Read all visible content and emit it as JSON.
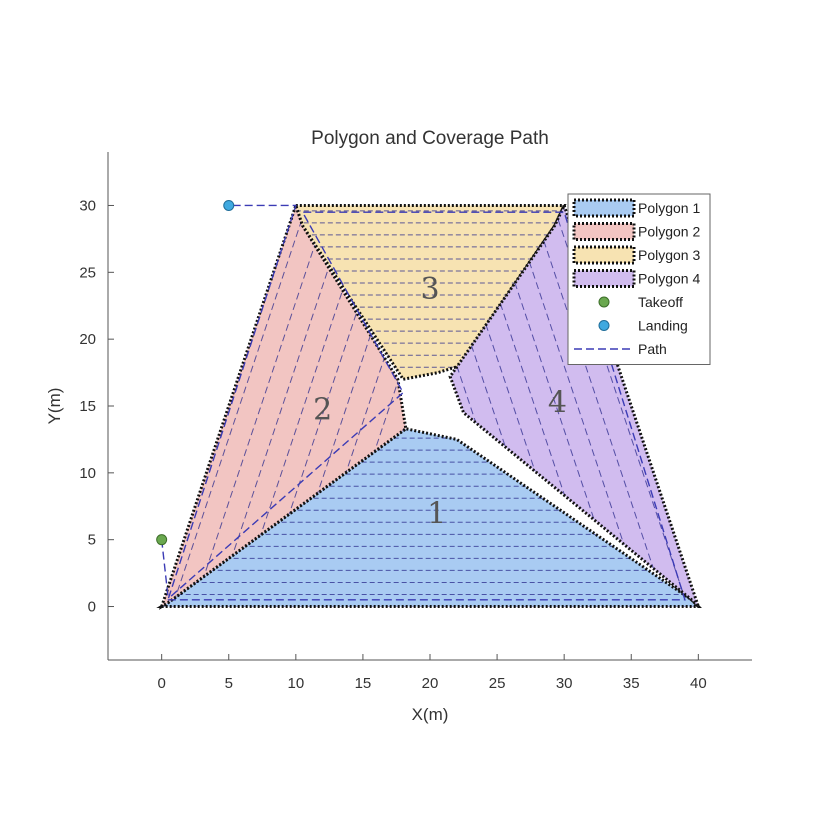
{
  "chart_data": {
    "type": "scatter",
    "title": "Polygon and Coverage Path",
    "xlabel": "X(m)",
    "ylabel": "Y(m)",
    "xlim": [
      -4,
      44
    ],
    "ylim": [
      -4,
      34
    ],
    "xticks": [
      0,
      5,
      10,
      15,
      20,
      25,
      30,
      35,
      40
    ],
    "yticks": [
      0,
      5,
      10,
      15,
      20,
      25,
      30
    ],
    "grid": false,
    "legend_position": "top-right",
    "polygons": [
      {
        "name": "Polygon 1",
        "label": "1",
        "label_at": [
          20.5,
          6.2
        ],
        "color": "#a9cbf2",
        "vertices": [
          [
            0,
            0
          ],
          [
            40,
            0
          ],
          [
            39.5,
            0.5
          ],
          [
            22,
            12.5
          ],
          [
            18.2,
            13.3
          ],
          [
            0.5,
            0.3
          ]
        ]
      },
      {
        "name": "Polygon 2",
        "label": "2",
        "label_at": [
          12,
          14
        ],
        "color": "#f2c5c2",
        "vertices": [
          [
            0,
            0
          ],
          [
            10,
            30
          ],
          [
            10.5,
            28.5
          ],
          [
            17.6,
            17
          ],
          [
            18.2,
            13.3
          ],
          [
            0.5,
            0.3
          ]
        ]
      },
      {
        "name": "Polygon 3",
        "label": "3",
        "label_at": [
          20,
          23
        ],
        "color": "#f7e3b2",
        "vertices": [
          [
            10,
            30
          ],
          [
            30,
            30
          ],
          [
            29.3,
            28.5
          ],
          [
            22.2,
            18
          ],
          [
            20.6,
            17.5
          ],
          [
            18,
            17
          ],
          [
            10.5,
            28.5
          ]
        ]
      },
      {
        "name": "Polygon 4",
        "label": "4",
        "label_at": [
          29.5,
          14.5
        ],
        "color": "#d1bcef",
        "vertices": [
          [
            30,
            30
          ],
          [
            40,
            0
          ],
          [
            39.5,
            0.5
          ],
          [
            22.5,
            14.5
          ],
          [
            21.5,
            17.2
          ],
          [
            29.3,
            28.5
          ]
        ]
      }
    ],
    "takeoff": {
      "name": "Takeoff",
      "x": 0,
      "y": 5,
      "color": "#6aa84f"
    },
    "landing": {
      "name": "Landing",
      "x": 5,
      "y": 30,
      "color": "#3fa9e0"
    },
    "path": {
      "name": "Path",
      "color": "#3b3bb5",
      "points": [
        [
          0,
          5
        ],
        [
          0.5,
          0.5
        ],
        [
          39,
          0.5
        ],
        [
          30,
          29.5
        ],
        [
          10.5,
          29.5
        ],
        [
          18,
          16
        ],
        [
          0.5,
          0.6
        ],
        [
          10,
          30
        ],
        [
          5,
          30
        ]
      ]
    },
    "legend": [
      "Polygon 1",
      "Polygon 2",
      "Polygon 3",
      "Polygon 4",
      "Takeoff",
      "Landing",
      "Path"
    ]
  }
}
